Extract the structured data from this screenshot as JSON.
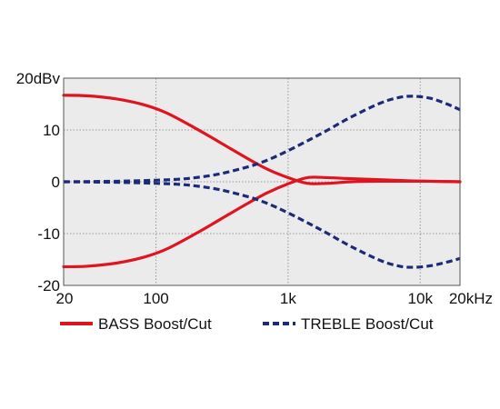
{
  "chart_data": {
    "type": "line",
    "x_scale": "log",
    "xlim": [
      20,
      20000
    ],
    "ylim": [
      -20,
      20
    ],
    "grid": true,
    "x_ticks": [
      {
        "value": 20,
        "label": "20"
      },
      {
        "value": 100,
        "label": "100"
      },
      {
        "value": 1000,
        "label": "1k"
      },
      {
        "value": 10000,
        "label": "10k"
      },
      {
        "value": 20000,
        "label": "20kHz"
      }
    ],
    "y_ticks": [
      {
        "value": 20,
        "label": "20dBv"
      },
      {
        "value": 10,
        "label": "10"
      },
      {
        "value": 0,
        "label": "0"
      },
      {
        "value": -10,
        "label": "-10"
      },
      {
        "value": -20,
        "label": "-20"
      }
    ],
    "legend_position": "bottom",
    "series": [
      {
        "name": "BASS Boost/Cut",
        "color": "#e0141e",
        "style": "solid",
        "curves": [
          {
            "x": [
              20,
              30,
              50,
              80,
              120,
              200,
              300,
              500,
              700,
              1000,
              1400,
              2000,
              3000,
              5000,
              8000,
              12000,
              20000
            ],
            "y": [
              16.7,
              16.6,
              16.0,
              14.9,
              13.3,
              10.3,
              7.7,
              4.4,
              2.4,
              0.8,
              -0.3,
              -0.3,
              0.0,
              0.1,
              0.1,
              0.1,
              0.0
            ]
          },
          {
            "x": [
              20,
              30,
              50,
              80,
              120,
              200,
              300,
              500,
              700,
              1000,
              1400,
              2000,
              3000,
              5000,
              8000,
              12000,
              20000
            ],
            "y": [
              -16.4,
              -16.3,
              -15.7,
              -14.6,
              -13.0,
              -10.0,
              -7.4,
              -4.1,
              -2.1,
              -0.4,
              0.8,
              0.8,
              0.6,
              0.4,
              0.2,
              0.1,
              0.0
            ]
          }
        ]
      },
      {
        "name": "TREBLE Boost/Cut",
        "color": "#1c2a7a",
        "style": "dashed",
        "curves": [
          {
            "x": [
              20,
              50,
              100,
              150,
              200,
              300,
              500,
              700,
              1000,
              1500,
              2000,
              3000,
              5000,
              7000,
              9000,
              12000,
              16000,
              20000
            ],
            "y": [
              0.0,
              0.1,
              0.3,
              0.5,
              0.8,
              1.5,
              2.9,
              4.2,
              6.0,
              8.3,
              10.0,
              12.5,
              15.2,
              16.3,
              16.5,
              16.1,
              15.0,
              13.9
            ]
          },
          {
            "x": [
              20,
              50,
              100,
              150,
              200,
              300,
              500,
              700,
              1000,
              1500,
              2000,
              3000,
              5000,
              7000,
              9000,
              12000,
              16000,
              20000
            ],
            "y": [
              0.0,
              -0.1,
              -0.3,
              -0.5,
              -0.8,
              -1.5,
              -2.9,
              -4.2,
              -6.0,
              -8.3,
              -10.0,
              -12.5,
              -15.2,
              -16.3,
              -16.5,
              -16.2,
              -15.5,
              -14.8
            ]
          }
        ]
      }
    ]
  }
}
